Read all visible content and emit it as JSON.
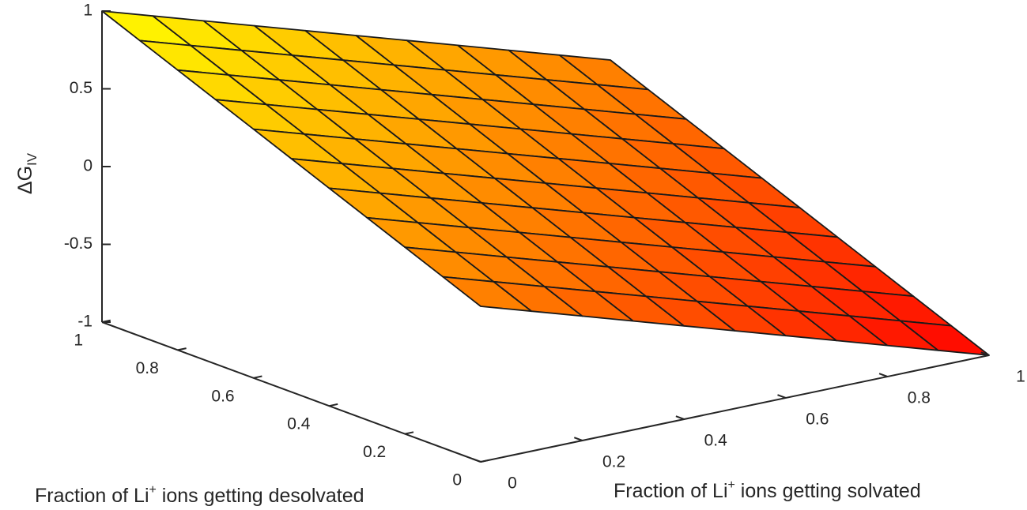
{
  "chart_data": {
    "type": "surface",
    "title": "",
    "zlabel": "ΔG",
    "zlabel_sub": "IV",
    "xlabel": {
      "pre": "Fraction of Li",
      "sup": "+",
      "post": " ions getting solvated"
    },
    "ylabel": {
      "pre": "Fraction of Li",
      "sup": "+",
      "post": " ions getting desolvated"
    },
    "xlim": [
      0,
      1
    ],
    "ylim": [
      0,
      1
    ],
    "zlim": [
      -1,
      1
    ],
    "x_ticks": [
      0,
      0.2,
      0.4,
      0.6,
      0.8,
      1
    ],
    "x_tick_labels": [
      "0",
      "0.2",
      "0.4",
      "0.6",
      "0.8",
      "1"
    ],
    "y_ticks": [
      0,
      0.2,
      0.4,
      0.6,
      0.8,
      1
    ],
    "y_tick_labels": [
      "0",
      "0.2",
      "0.4",
      "0.6",
      "0.8",
      "1"
    ],
    "z_ticks": [
      -1,
      -0.5,
      0,
      0.5,
      1
    ],
    "z_tick_labels": [
      "-1",
      "-0.5",
      "0",
      "0.5",
      "1"
    ],
    "grid_size": 10,
    "surface": {
      "formula": "z = y - x",
      "corners": [
        {
          "x": 0,
          "y": 0,
          "z": 0
        },
        {
          "x": 1,
          "y": 0,
          "z": -1
        },
        {
          "x": 0,
          "y": 1,
          "z": 1
        },
        {
          "x": 1,
          "y": 1,
          "z": 0
        }
      ]
    },
    "colormap": "autumn",
    "colors": {
      "low": "#ff0000",
      "high": "#ffff00",
      "edge": "#1a1a1a"
    }
  }
}
